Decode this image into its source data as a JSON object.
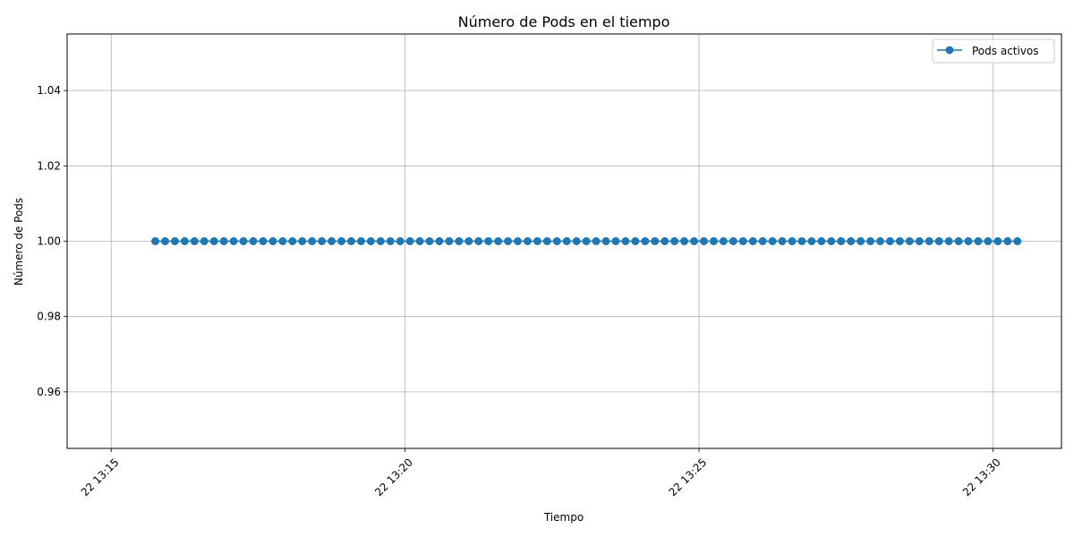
{
  "chart_data": {
    "type": "line",
    "title": "Número de Pods en el tiempo",
    "xlabel": "Tiempo",
    "ylabel": "Número de Pods",
    "x_range": [
      "13:14:15",
      "13:31:10"
    ],
    "x_start": "13:15:45",
    "x_step_seconds": 10,
    "point_count": 89,
    "x_ticks": [
      {
        "value": "13:15:00",
        "label": "22 13:15"
      },
      {
        "value": "13:20:00",
        "label": "22 13:20"
      },
      {
        "value": "13:25:00",
        "label": "22 13:25"
      },
      {
        "value": "13:30:00",
        "label": "22 13:30"
      }
    ],
    "ylim": [
      0.945,
      1.055
    ],
    "y_ticks": [
      {
        "value": 0.96,
        "label": "0.96"
      },
      {
        "value": 0.98,
        "label": "0.98"
      },
      {
        "value": 1.0,
        "label": "1.00"
      },
      {
        "value": 1.02,
        "label": "1.02"
      },
      {
        "value": 1.04,
        "label": "1.04"
      }
    ],
    "grid": true,
    "legend_position": "top-right",
    "series": [
      {
        "name": "Pods activos",
        "color": "#1f77b4",
        "marker": "circle",
        "y_constant": 1.0
      }
    ]
  }
}
